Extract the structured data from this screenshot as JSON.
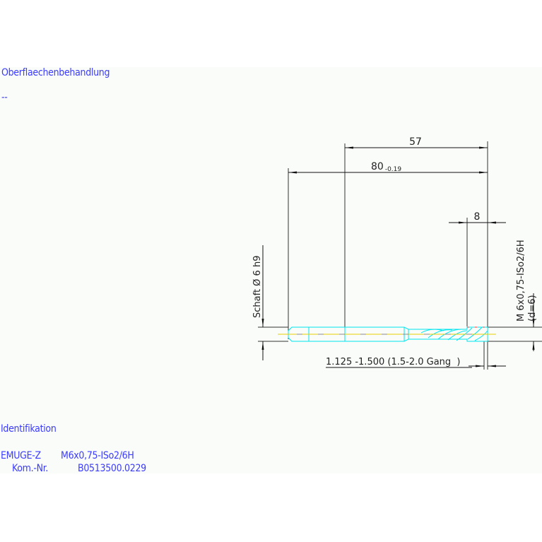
{
  "surface_treatment": {
    "label": "Oberflaechenbehandlung",
    "value": "--"
  },
  "identification": {
    "label": "Identifikation",
    "line1_brand": "EMUGE-Z",
    "line1_spec": "M6x0,75-ISo2/6H",
    "line2_label": "Kom.-Nr.",
    "line2_value": "B0513500.0229"
  },
  "drawing": {
    "dim_thread_length": "57",
    "dim_total_length": "80",
    "dim_total_tolerance": "-0.19",
    "dim_chamfer": "8",
    "shank_label": "Schaft Ø 6 h9",
    "thread_label": "M 6x0,75-ISo2/6H",
    "thread_depth": "(d=6)",
    "chamfer_note": "1.125 -1.500 (1.5-2.0 Gang  )",
    "colors": {
      "tool": "#00e5ee",
      "centerline": "#e8d000",
      "dimension": "#222222",
      "text": "#3b3bff",
      "thread_tip": "#ff3030"
    }
  }
}
